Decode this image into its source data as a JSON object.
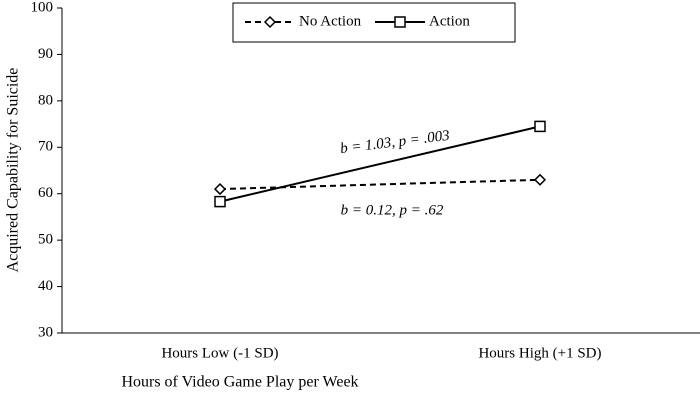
{
  "chart_data": {
    "type": "line",
    "x_label": "Hours of Video Game Play per Week",
    "y_label": "Acquired Capability for Suicide",
    "categories": [
      "Hours Low (-1 SD)",
      "Hours High (+1 SD)"
    ],
    "series": [
      {
        "name": "No Action",
        "color": "#000000",
        "dashed": true,
        "marker": "diamond",
        "values": [
          61,
          63
        ]
      },
      {
        "name": "Action",
        "color": "#000000",
        "dashed": false,
        "marker": "square",
        "values": [
          58.3,
          74.5
        ]
      }
    ],
    "annotations": [
      "b = 1.03, p = .003",
      "b = 0.12, p = .62"
    ],
    "ylim": [
      30,
      100
    ],
    "yticks": [
      30,
      40,
      50,
      60,
      70,
      80,
      90,
      100
    ],
    "grid": false,
    "legend": "top"
  }
}
